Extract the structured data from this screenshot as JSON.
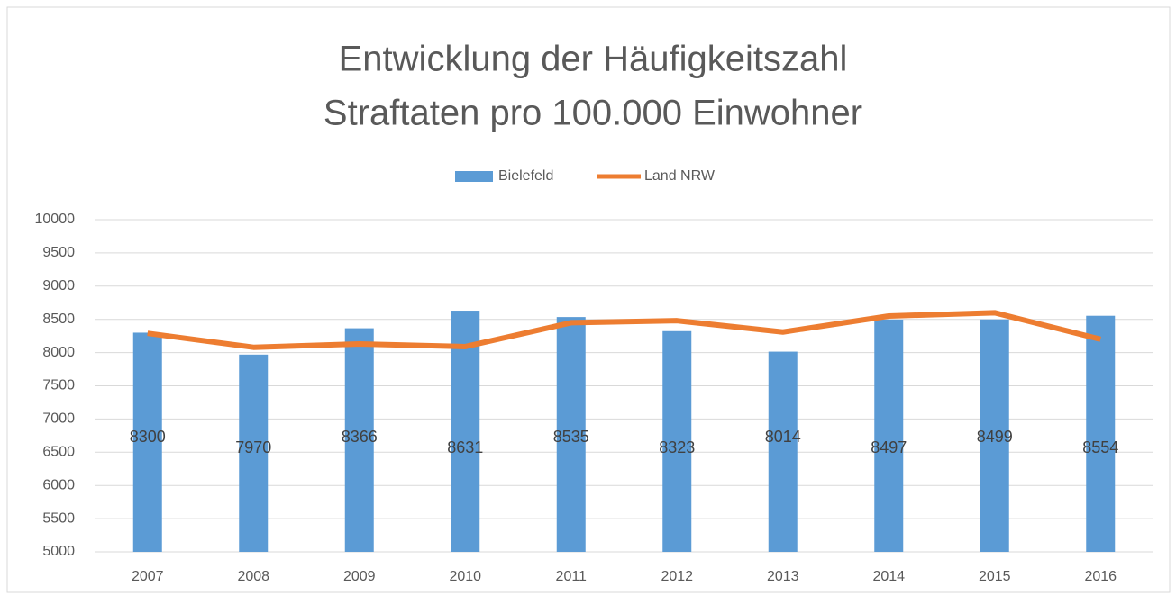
{
  "chart_data": {
    "type": "bar",
    "title": [
      "Entwicklung der Häufigkeitszahl",
      "Straftaten pro 100.000 Einwohner"
    ],
    "categories": [
      "2007",
      "2008",
      "2009",
      "2010",
      "2011",
      "2012",
      "2013",
      "2014",
      "2015",
      "2016"
    ],
    "series": [
      {
        "name": "Bielefeld",
        "type": "bar",
        "color": "#5b9bd5",
        "values": [
          8300,
          7970,
          8366,
          8631,
          8535,
          8323,
          8014,
          8497,
          8499,
          8554
        ]
      },
      {
        "name": "Land NRW",
        "type": "line",
        "color": "#ed7d31",
        "values": [
          8290,
          8080,
          8130,
          8090,
          8450,
          8480,
          8310,
          8550,
          8600,
          8200
        ]
      }
    ],
    "ylim": [
      5000,
      10000
    ],
    "yticks": [
      5000,
      5500,
      6000,
      6500,
      7000,
      7500,
      8000,
      8500,
      9000,
      9500,
      10000
    ],
    "grid": true,
    "legend": "top"
  }
}
